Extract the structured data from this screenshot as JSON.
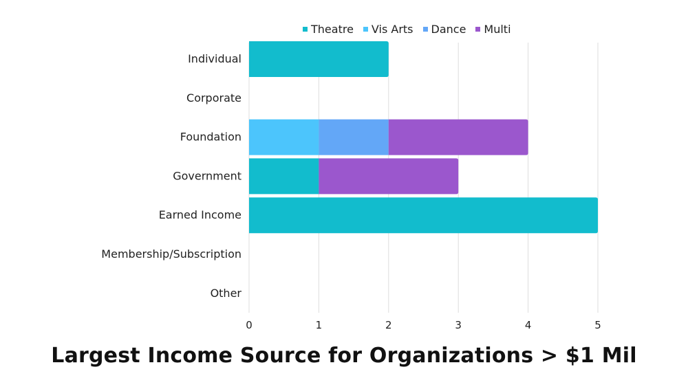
{
  "chart_data": {
    "type": "bar",
    "orientation": "horizontal",
    "stacked": true,
    "title": "Largest Income Source for Organizations > $1 Mil",
    "categories": [
      "Individual",
      "Corporate",
      "Foundation",
      "Government",
      "Earned Income",
      "Membership/Subscription",
      "Other"
    ],
    "series": [
      {
        "name": "Theatre",
        "color": "#12bccd",
        "values": [
          2,
          0,
          0,
          1,
          5,
          0,
          0
        ]
      },
      {
        "name": "Vis Arts",
        "color": "#4cc5fc",
        "values": [
          0,
          0,
          1,
          0,
          0,
          0,
          0
        ]
      },
      {
        "name": "Dance",
        "color": "#63a7f7",
        "values": [
          0,
          0,
          1,
          0,
          0,
          0,
          0
        ]
      },
      {
        "name": "Multi",
        "color": "#9b57cd",
        "values": [
          0,
          0,
          2,
          2,
          0,
          0,
          0
        ]
      }
    ],
    "xticks": [
      "0",
      "1",
      "2",
      "3",
      "4",
      "5"
    ],
    "xlim": [
      0,
      5
    ],
    "grid": true,
    "legend_position": "top"
  }
}
